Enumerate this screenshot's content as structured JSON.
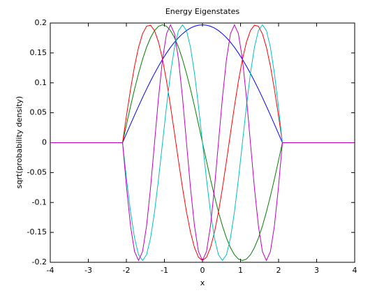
{
  "chart_data": {
    "type": "line",
    "title": "Energy Eigenstates",
    "xlabel": "x",
    "ylabel": "sqrt(probability density)",
    "x": [
      -4,
      -2.1,
      -1.995,
      -1.89,
      -1.785,
      -1.68,
      -1.575,
      -1.47,
      -1.365,
      -1.26,
      -1.155,
      -1.05,
      -0.945,
      -0.84,
      -0.735,
      -0.63,
      -0.525,
      -0.42,
      -0.315,
      -0.21,
      -0.105,
      0,
      0.105,
      0.21,
      0.315,
      0.42,
      0.525,
      0.63,
      0.735,
      0.84,
      0.945,
      1.05,
      1.155,
      1.26,
      1.365,
      1.47,
      1.575,
      1.68,
      1.785,
      1.89,
      1.995,
      2.1,
      4
    ],
    "series": [
      {
        "color": "#0000ff",
        "values": [
          0,
          0,
          0.0155,
          0.0308,
          0.046,
          0.0609,
          0.0754,
          0.0894,
          0.1029,
          0.1158,
          0.1279,
          0.1393,
          0.1498,
          0.1594,
          0.168,
          0.1755,
          0.182,
          0.1874,
          0.1916,
          0.1946,
          0.1964,
          0.197,
          0.1964,
          0.1946,
          0.1916,
          0.1874,
          0.182,
          0.1755,
          0.168,
          0.1594,
          0.1498,
          0.1393,
          0.1279,
          0.1158,
          0.1029,
          0.0894,
          0.0754,
          0.0609,
          0.046,
          0.0308,
          0.0155,
          0,
          0
        ]
      },
      {
        "color": "#008000",
        "values": [
          0,
          0,
          0.0308,
          0.0609,
          0.0894,
          0.1158,
          0.1393,
          0.1594,
          0.1755,
          0.1874,
          0.1946,
          0.197,
          0.1946,
          0.1874,
          0.1755,
          0.1594,
          0.1393,
          0.1158,
          0.0894,
          0.0609,
          0.0308,
          0,
          -0.0308,
          -0.0609,
          -0.0894,
          -0.1158,
          -0.1393,
          -0.1594,
          -0.1755,
          -0.1874,
          -0.1946,
          -0.197,
          -0.1946,
          -0.1874,
          -0.1755,
          -0.1594,
          -0.1393,
          -0.1158,
          -0.0894,
          -0.0609,
          -0.0308,
          0,
          0
        ]
      },
      {
        "color": "#ff0000",
        "values": [
          0,
          0,
          0.046,
          0.0894,
          0.1279,
          0.1594,
          0.182,
          0.1946,
          0.1964,
          0.1874,
          0.168,
          0.1393,
          0.1029,
          0.0609,
          0.0155,
          -0.0308,
          -0.0754,
          -0.1158,
          -0.1498,
          -0.1755,
          -0.1916,
          -0.197,
          -0.1916,
          -0.1755,
          -0.1498,
          -0.1158,
          -0.0754,
          -0.0308,
          0.0155,
          0.0609,
          0.1029,
          0.1393,
          0.168,
          0.1874,
          0.1964,
          0.1946,
          0.182,
          0.1594,
          0.1279,
          0.0894,
          0.046,
          0,
          0
        ]
      },
      {
        "color": "#00bfbf",
        "values": [
          0,
          0,
          -0.0609,
          -0.1158,
          -0.1594,
          -0.1874,
          -0.197,
          -0.1874,
          -0.1594,
          -0.1158,
          -0.0609,
          0,
          0.0609,
          0.1158,
          0.1594,
          0.1874,
          0.197,
          0.1874,
          0.1594,
          0.1158,
          0.0609,
          0,
          -0.0609,
          -0.1158,
          -0.1594,
          -0.1874,
          -0.197,
          -0.1874,
          -0.1594,
          -0.1158,
          -0.0609,
          0,
          0.0609,
          0.1158,
          0.1594,
          0.1874,
          0.197,
          0.1874,
          0.1594,
          0.1158,
          0.0609,
          0,
          0
        ]
      },
      {
        "color": "#bf00bf",
        "values": [
          0,
          0,
          -0.0754,
          -0.1393,
          -0.182,
          -0.197,
          -0.182,
          -0.1393,
          -0.0754,
          0,
          0.0754,
          0.1393,
          0.182,
          0.197,
          0.182,
          0.1393,
          0.0754,
          0,
          -0.0754,
          -0.1393,
          -0.182,
          -0.197,
          -0.182,
          -0.1393,
          -0.0754,
          0,
          0.0754,
          0.1393,
          0.182,
          0.197,
          0.182,
          0.1393,
          0.0754,
          0,
          -0.0754,
          -0.1393,
          -0.182,
          -0.197,
          -0.182,
          -0.1393,
          -0.0754,
          0,
          0
        ]
      }
    ],
    "xlim": [
      -4,
      4
    ],
    "xticks": [
      -4,
      -3,
      -2,
      -1,
      0,
      1,
      2,
      3,
      4
    ],
    "ylim": [
      -0.2,
      0.2
    ],
    "yticks": [
      -0.2,
      -0.15,
      -0.1,
      -0.05,
      0,
      0.05,
      0.1,
      0.15,
      0.2
    ],
    "grid": false
  }
}
